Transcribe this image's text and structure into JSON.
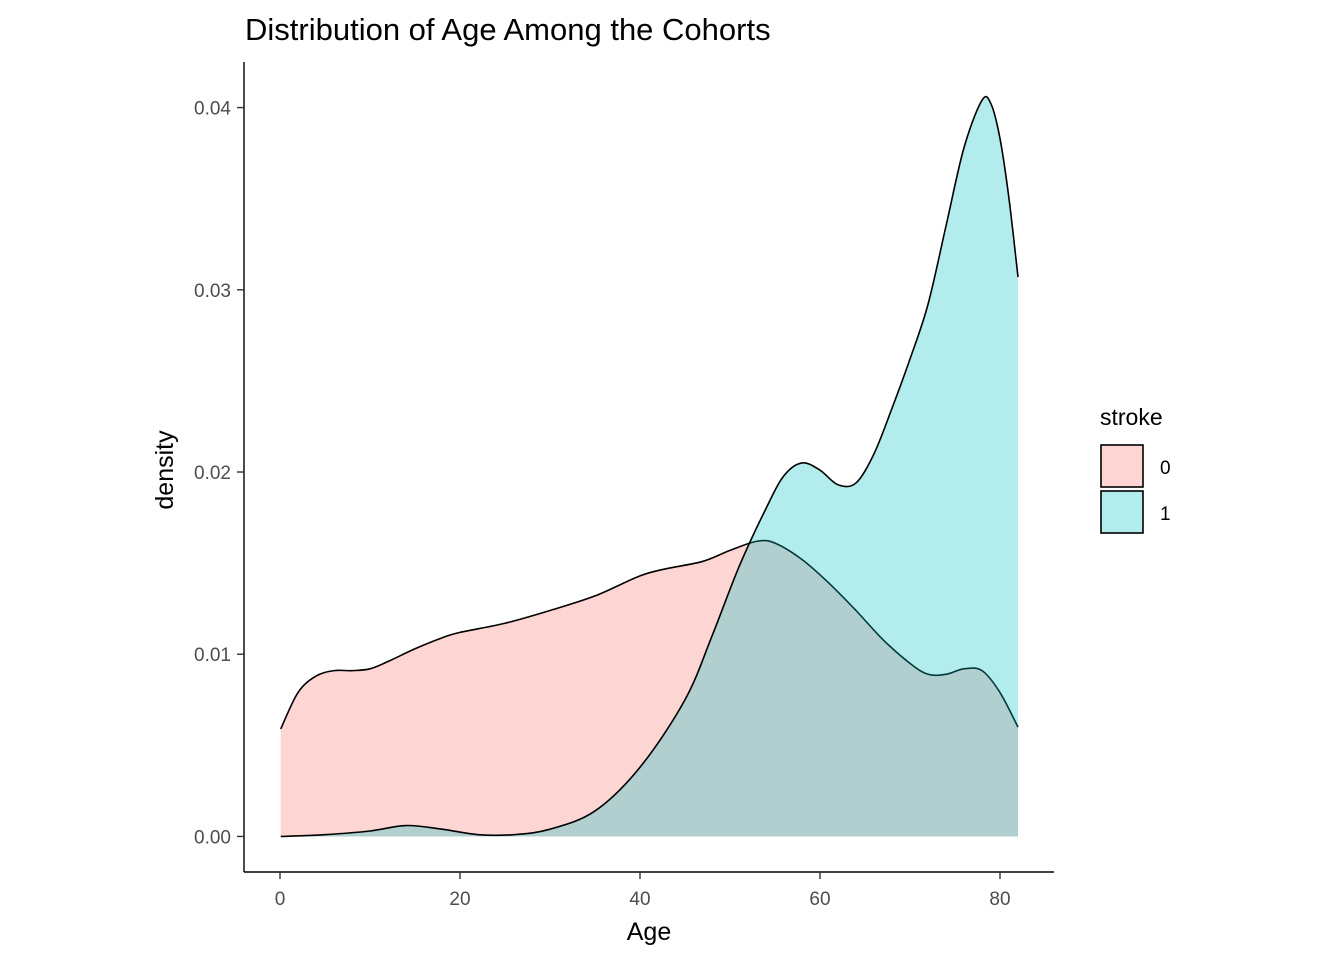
{
  "chart_data": {
    "type": "area",
    "title": "Distribution of Age Among the Cohorts",
    "xlabel": "Age",
    "ylabel": "density",
    "xlim": [
      -4,
      86
    ],
    "ylim": [
      -0.00195,
      0.0425
    ],
    "x_ticks": [
      0,
      20,
      40,
      60,
      80
    ],
    "y_ticks": [
      0.0,
      0.01,
      0.02,
      0.03,
      0.04
    ],
    "y_tick_labels": [
      "0.00",
      "0.01",
      "0.02",
      "0.03",
      "0.04"
    ],
    "grid": false,
    "legend": {
      "title": "stroke",
      "position": "right",
      "entries": [
        "0",
        "1"
      ]
    },
    "series": [
      {
        "name": "0",
        "color": "#F8766D",
        "fill_opacity": 0.3,
        "points": [
          [
            0.08,
            0.0059
          ],
          [
            2,
            0.0079
          ],
          [
            4,
            0.0088
          ],
          [
            6,
            0.0091
          ],
          [
            8,
            0.0091
          ],
          [
            10,
            0.0092
          ],
          [
            12,
            0.0096
          ],
          [
            15,
            0.0103
          ],
          [
            18,
            0.0109
          ],
          [
            20,
            0.0112
          ],
          [
            25,
            0.0117
          ],
          [
            30,
            0.0124
          ],
          [
            35,
            0.0132
          ],
          [
            40,
            0.0143
          ],
          [
            43,
            0.0147
          ],
          [
            47,
            0.0151
          ],
          [
            50,
            0.0157
          ],
          [
            53,
            0.0162
          ],
          [
            55,
            0.0161
          ],
          [
            58,
            0.0152
          ],
          [
            61,
            0.0139
          ],
          [
            64,
            0.0124
          ],
          [
            67,
            0.0108
          ],
          [
            70,
            0.0095
          ],
          [
            72,
            0.0089
          ],
          [
            74,
            0.0089
          ],
          [
            76,
            0.0092
          ],
          [
            78,
            0.0091
          ],
          [
            80,
            0.0079
          ],
          [
            82,
            0.006
          ]
        ]
      },
      {
        "name": "1",
        "color": "#00BFC4",
        "fill_opacity": 0.3,
        "points": [
          [
            0.08,
            0.0
          ],
          [
            5,
            0.0001
          ],
          [
            10,
            0.0003
          ],
          [
            14,
            0.0006
          ],
          [
            18,
            0.0004
          ],
          [
            22,
            0.0001
          ],
          [
            26,
            0.0001
          ],
          [
            30,
            0.0004
          ],
          [
            35,
            0.0014
          ],
          [
            40,
            0.0038
          ],
          [
            45,
            0.0075
          ],
          [
            48,
            0.011
          ],
          [
            51,
            0.0148
          ],
          [
            54,
            0.018
          ],
          [
            56,
            0.0198
          ],
          [
            58,
            0.0205
          ],
          [
            60,
            0.0201
          ],
          [
            62,
            0.0193
          ],
          [
            64,
            0.0194
          ],
          [
            66,
            0.021
          ],
          [
            68,
            0.0235
          ],
          [
            70,
            0.0262
          ],
          [
            72,
            0.0292
          ],
          [
            74,
            0.0335
          ],
          [
            76,
            0.0378
          ],
          [
            78,
            0.0404
          ],
          [
            79,
            0.0402
          ],
          [
            80,
            0.0383
          ],
          [
            81,
            0.035
          ],
          [
            82,
            0.0307
          ]
        ]
      }
    ]
  }
}
